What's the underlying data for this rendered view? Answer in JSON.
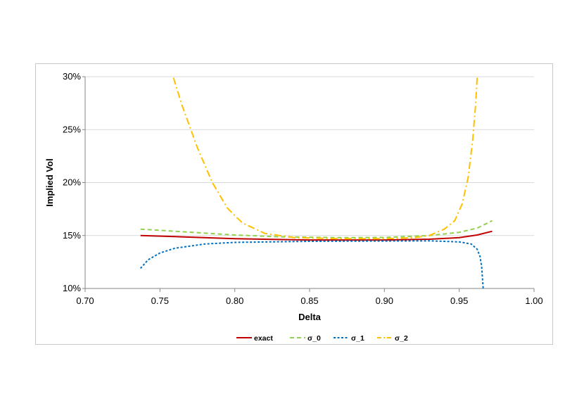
{
  "chart_data": {
    "type": "line",
    "title": "",
    "xlabel": "Delta",
    "ylabel": "Implied Vol",
    "xlim": [
      0.7,
      1.0
    ],
    "ylim": [
      0.1,
      0.3
    ],
    "x_ticks": [
      "0.70",
      "0.75",
      "0.80",
      "0.85",
      "0.90",
      "0.95",
      "1.00"
    ],
    "y_ticks": [
      "10%",
      "15%",
      "20%",
      "25%",
      "30%"
    ],
    "grid": "horizontal",
    "legend_position": "bottom",
    "series": [
      {
        "name": "exact",
        "color": "#c00000",
        "dash": "solid",
        "points": [
          [
            0.737,
            0.15
          ],
          [
            0.76,
            0.149
          ],
          [
            0.8,
            0.147
          ],
          [
            0.85,
            0.1458
          ],
          [
            0.9,
            0.1458
          ],
          [
            0.93,
            0.1465
          ],
          [
            0.95,
            0.148
          ],
          [
            0.962,
            0.1505
          ],
          [
            0.972,
            0.154
          ]
        ]
      },
      {
        "name": "σ_0",
        "color": "#92d050",
        "dash": "dashed",
        "points": [
          [
            0.737,
            0.156
          ],
          [
            0.76,
            0.154
          ],
          [
            0.8,
            0.1505
          ],
          [
            0.83,
            0.1488
          ],
          [
            0.87,
            0.148
          ],
          [
            0.9,
            0.1482
          ],
          [
            0.93,
            0.15
          ],
          [
            0.95,
            0.153
          ],
          [
            0.962,
            0.157
          ],
          [
            0.972,
            0.164
          ]
        ]
      },
      {
        "name": "σ_1",
        "color": "#0070c0",
        "dash": "dotted",
        "points": [
          [
            0.737,
            0.119
          ],
          [
            0.742,
            0.127
          ],
          [
            0.75,
            0.1335
          ],
          [
            0.76,
            0.138
          ],
          [
            0.78,
            0.142
          ],
          [
            0.8,
            0.1435
          ],
          [
            0.85,
            0.1445
          ],
          [
            0.9,
            0.1448
          ],
          [
            0.93,
            0.145
          ],
          [
            0.95,
            0.144
          ],
          [
            0.958,
            0.142
          ],
          [
            0.962,
            0.137
          ],
          [
            0.964,
            0.13
          ],
          [
            0.965,
            0.12
          ],
          [
            0.966,
            0.1
          ]
        ]
      },
      {
        "name": "σ_2",
        "color": "#ffc000",
        "dash": "dashdot",
        "points": [
          [
            0.759,
            0.299
          ],
          [
            0.765,
            0.272
          ],
          [
            0.775,
            0.233
          ],
          [
            0.785,
            0.2
          ],
          [
            0.795,
            0.176
          ],
          [
            0.805,
            0.162
          ],
          [
            0.82,
            0.152
          ],
          [
            0.84,
            0.148
          ],
          [
            0.87,
            0.147
          ],
          [
            0.9,
            0.147
          ],
          [
            0.92,
            0.148
          ],
          [
            0.93,
            0.15
          ],
          [
            0.94,
            0.156
          ],
          [
            0.947,
            0.164
          ],
          [
            0.952,
            0.18
          ],
          [
            0.956,
            0.205
          ],
          [
            0.959,
            0.24
          ],
          [
            0.961,
            0.275
          ],
          [
            0.962,
            0.3
          ]
        ]
      }
    ]
  }
}
